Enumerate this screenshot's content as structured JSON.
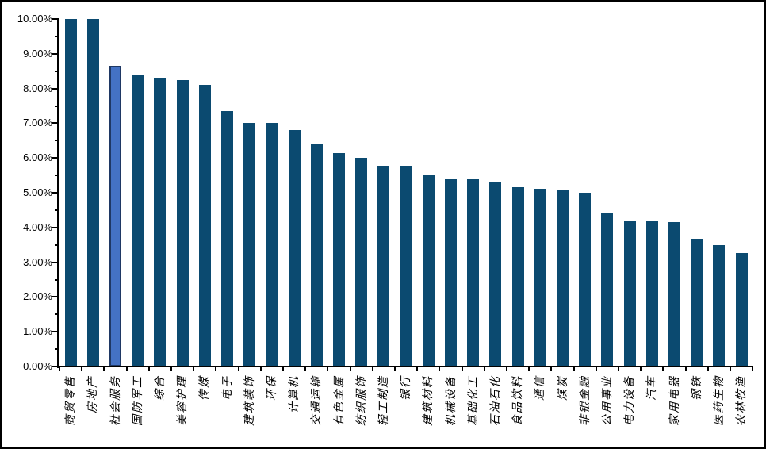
{
  "window": {
    "description_label": "industry bar chart"
  },
  "chart_data": {
    "type": "bar",
    "title": "",
    "xlabel": "",
    "ylabel": "",
    "categories": [
      "商贸零售",
      "房地产",
      "社会服务",
      "国防军工",
      "综合",
      "美容护理",
      "传媒",
      "电子",
      "建筑装饰",
      "环保",
      "计算机",
      "交通运输",
      "有色金属",
      "纺织服饰",
      "轻工制造",
      "银行",
      "建筑材料",
      "机械设备",
      "基础化工",
      "石油石化",
      "食品饮料",
      "通信",
      "煤炭",
      "非银金融",
      "公用事业",
      "电力设备",
      "汽车",
      "家用电器",
      "钢铁",
      "医药生物",
      "农林牧渔"
    ],
    "values": [
      10.0,
      10.0,
      8.66,
      8.39,
      8.3,
      8.24,
      8.11,
      7.35,
      7.0,
      7.0,
      6.81,
      6.4,
      6.15,
      6.0,
      5.78,
      5.78,
      5.5,
      5.38,
      5.38,
      5.33,
      5.16,
      5.12,
      5.1,
      5.0,
      4.4,
      4.19,
      4.2,
      4.15,
      3.68,
      3.5,
      3.27
    ],
    "highlight_index": 2,
    "highlighted_category": "社会服务",
    "ylim": [
      0,
      10
    ],
    "y_major_step": 1,
    "y_minor_step": 0.5,
    "y_tick_labels": [
      "0.00%",
      "1.00%",
      "2.00%",
      "3.00%",
      "4.00%",
      "5.00%",
      "6.00%",
      "7.00%",
      "8.00%",
      "9.00%",
      "10.00%"
    ],
    "grid": false,
    "legend": null,
    "colors": {
      "bar": "#0B4A70",
      "highlight_fill": "#4472C4",
      "highlight_border": "#1F3864",
      "axis": "#000000",
      "frame": "#000000",
      "background": "#FFFFFF"
    }
  }
}
